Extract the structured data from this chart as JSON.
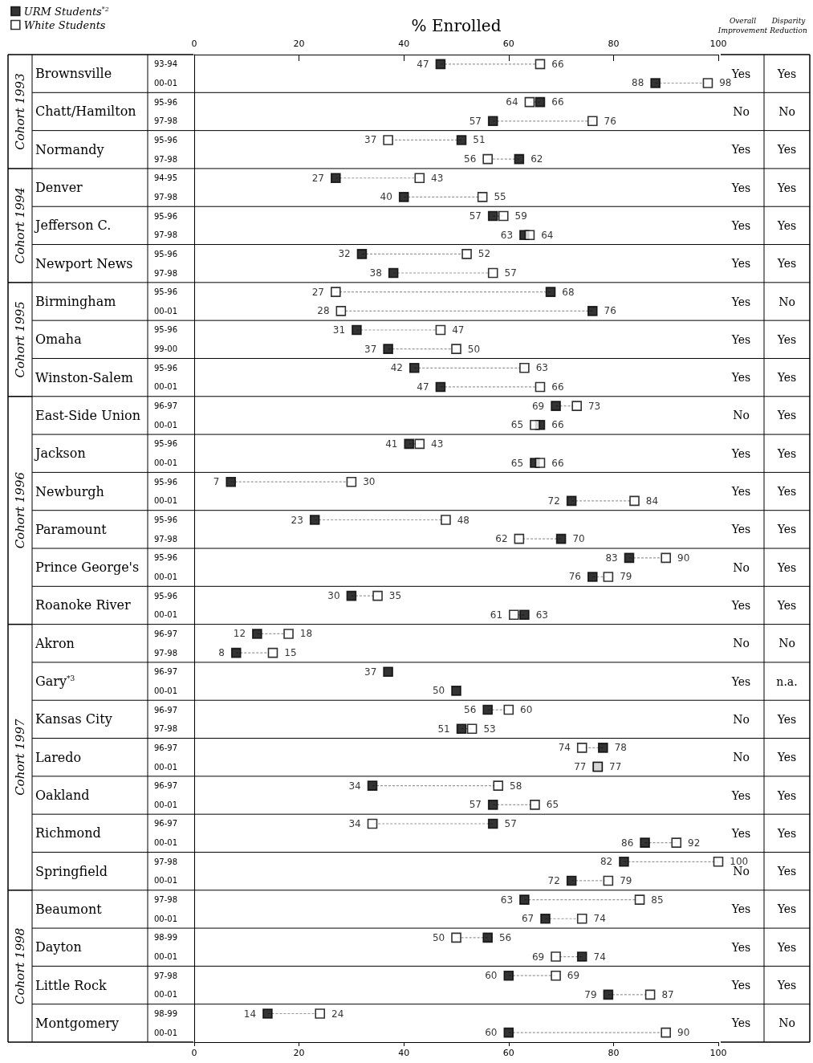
{
  "chart_data": {
    "type": "scatter",
    "orientation": "horizontal",
    "xlabel": "% Enrolled",
    "categories": [
      "93-94",
      "00-01",
      "95-96",
      "97-98",
      "95-96",
      "97-98",
      "94-95",
      "97-98",
      "95-96",
      "97-98",
      "95-96",
      "97-98",
      "95-96",
      "00-01",
      "95-96",
      "99-00",
      "95-96",
      "00-01",
      "96-97",
      "00-01",
      "95-96",
      "00-01",
      "95-96",
      "00-01",
      "95-96",
      "97-98",
      "95-96",
      "00-01",
      "95-96",
      "00-01",
      "96-97",
      "97-98",
      "96-97",
      "00-01",
      "96-97",
      "97-98",
      "96-97",
      "00-01",
      "96-97",
      "00-01",
      "96-97",
      "00-01",
      "97-98",
      "00-01",
      "97-98",
      "00-01",
      "98-99",
      "00-01",
      "97-98",
      "00-01",
      "98-99",
      "00-01"
    ],
    "series": [
      {
        "name": "URM Students$^{*2}$",
        "color": "#000000",
        "values": [
          47,
          88,
          66,
          57,
          51,
          62,
          27,
          40,
          57,
          63,
          32,
          38,
          68,
          76,
          31,
          37,
          42,
          47,
          69,
          66,
          41,
          65,
          7,
          72,
          23,
          70,
          83,
          76,
          30,
          63,
          12,
          8,
          37,
          50,
          56,
          51,
          78,
          77,
          34,
          57,
          57,
          86,
          82,
          72,
          63,
          67,
          56,
          74,
          60,
          79,
          14,
          60
        ]
      },
      {
        "name": "White Students",
        "color": "#ffffff",
        "values": [
          66,
          98,
          64,
          76,
          37,
          56,
          43,
          55,
          59,
          64,
          52,
          57,
          27,
          28,
          47,
          50,
          63,
          66,
          73,
          65,
          43,
          66,
          30,
          84,
          48,
          62,
          90,
          79,
          35,
          61,
          18,
          15,
          null,
          null,
          60,
          53,
          74,
          77,
          58,
          65,
          34,
          92,
          100,
          79,
          85,
          74,
          50,
          69,
          69,
          87,
          24,
          90
        ]
      }
    ],
    "xlim": [
      0,
      100
    ],
    "xticks": [
      0,
      20,
      40,
      60,
      80,
      100
    ],
    "x2lim": [
      0,
      100
    ],
    "x2ticks": [
      0,
      20,
      40,
      60,
      80,
      100
    ],
    "marker": "square",
    "data_labels": true,
    "legend": "top left",
    "annotations": [
      "Overall Improvement",
      "Disparity Reduction",
      "Cohort 1993",
      "Cohort 1994",
      "Cohort 1995",
      "Cohort 1996",
      "Cohort 1997",
      "Cohort 1998",
      "Brownsville",
      "Chatt/Hamilton",
      "Normandy",
      "Denver",
      "Jefferson C.",
      "Newport News",
      "Birmingham",
      "Omaha",
      "Winston-Salem",
      "East-Side Union",
      "Jackson",
      "Newburgh",
      "Paramount",
      "Prince George's",
      "Roanoke River",
      "Akron",
      "Gary$^{*3}$",
      "Kansas City",
      "Laredo",
      "Oakland",
      "Richmond",
      "Springfield",
      "Beaumont",
      "Dayton",
      "Little Rock",
      "Montgomery",
      "Yes",
      "Yes",
      "No",
      "No",
      "Yes",
      "Yes",
      "Yes",
      "Yes",
      "Yes",
      "Yes",
      "Yes",
      "Yes",
      "Yes",
      "No",
      "Yes",
      "Yes",
      "Yes",
      "Yes",
      "No",
      "Yes",
      "Yes",
      "Yes",
      "Yes",
      "Yes",
      "Yes",
      "Yes",
      "No",
      "Yes",
      "Yes",
      "Yes",
      "No",
      "No",
      "Yes",
      "n.a.",
      "No",
      "Yes",
      "No",
      "Yes",
      "Yes",
      "Yes",
      "Yes",
      "Yes",
      "No",
      "Yes",
      "Yes",
      "Yes",
      "Yes",
      "Yes",
      "Yes",
      "Yes",
      "Yes",
      "No"
    ]
  }
}
